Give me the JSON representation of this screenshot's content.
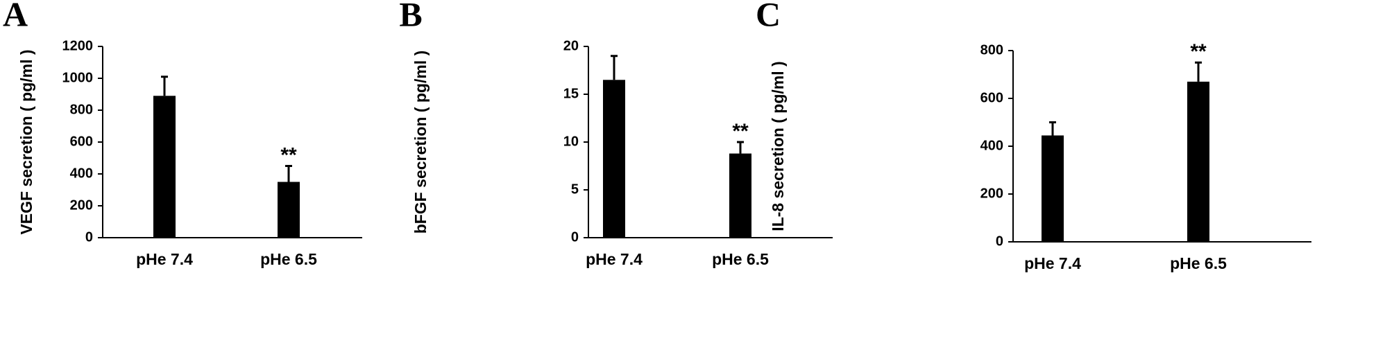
{
  "chart_data": [
    {
      "type": "bar",
      "panel": "A",
      "ylabel": "VEGF secretion ( pg/ml )",
      "categories": [
        "pHe 7.4",
        "pHe 6.5"
      ],
      "series": [
        {
          "values": [
            890,
            350
          ],
          "errors": [
            120,
            100
          ],
          "color": "#000000"
        }
      ],
      "annotations": [
        {
          "category": "pHe 6.5",
          "text": "**"
        }
      ],
      "ylim": [
        0,
        1200
      ],
      "yticks": [
        0,
        200,
        400,
        600,
        800,
        1000,
        1200
      ]
    },
    {
      "type": "bar",
      "panel": "B",
      "ylabel": "bFGF secretion ( pg/ml )",
      "categories": [
        "pHe 7.4",
        "pHe 6.5"
      ],
      "series": [
        {
          "values": [
            16.5,
            8.8
          ],
          "errors": [
            2.5,
            1.2
          ],
          "color": "#000000"
        }
      ],
      "annotations": [
        {
          "category": "pHe 6.5",
          "text": "**"
        }
      ],
      "ylim": [
        0,
        20
      ],
      "yticks": [
        0,
        5,
        10,
        15,
        20
      ]
    },
    {
      "type": "bar",
      "panel": "C",
      "ylabel": "IL-8 secretion ( pg/ml )",
      "categories": [
        "pHe 7.4",
        "pHe 6.5"
      ],
      "series": [
        {
          "values": [
            445,
            670
          ],
          "errors": [
            55,
            80
          ],
          "color": "#000000"
        }
      ],
      "annotations": [
        {
          "category": "pHe 6.5",
          "text": "**"
        }
      ],
      "ylim": [
        0,
        800
      ],
      "yticks": [
        0,
        200,
        400,
        600,
        800
      ]
    }
  ]
}
